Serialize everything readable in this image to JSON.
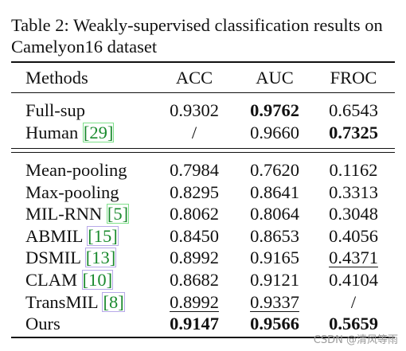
{
  "caption": "Table 2: Weakly-supervised classification results on Camelyon16 dataset",
  "header": {
    "method": "Methods",
    "acc": "ACC",
    "auc": "AUC",
    "froc": "FROC"
  },
  "group1": [
    {
      "name": "Full-sup",
      "ref": "",
      "acc": "0.9302",
      "auc": "0.9762",
      "froc": "0.6543",
      "auc_bold": true
    },
    {
      "name": "Human",
      "ref": "29",
      "acc": "/",
      "auc": "0.9660",
      "froc": "0.7325",
      "froc_bold": true
    }
  ],
  "group2": [
    {
      "name": "Mean-pooling",
      "ref": "",
      "acc": "0.7984",
      "auc": "0.7620",
      "froc": "0.1162"
    },
    {
      "name": "Max-pooling",
      "ref": "",
      "acc": "0.8295",
      "auc": "0.8641",
      "froc": "0.3313"
    },
    {
      "name": "MIL-RNN",
      "ref": "5",
      "acc": "0.8062",
      "auc": "0.8064",
      "froc": "0.3048"
    },
    {
      "name": "ABMIL",
      "ref": "15",
      "acc": "0.8450",
      "auc": "0.8653",
      "froc": "0.4056"
    },
    {
      "name": "DSMIL",
      "ref": "13",
      "acc": "0.8992",
      "auc": "0.9165",
      "froc": "0.4371",
      "froc_under": true
    },
    {
      "name": "CLAM",
      "ref": "10",
      "acc": "0.8682",
      "auc": "0.9121",
      "froc": "0.4104"
    },
    {
      "name": "TransMIL",
      "ref": "8",
      "acc": "0.8992",
      "auc": "0.9337",
      "froc": "/",
      "acc_under": true,
      "auc_under": true
    },
    {
      "name": "Ours",
      "ref": "",
      "acc": "0.9147",
      "auc": "0.9566",
      "froc": "0.5659",
      "acc_bold": true,
      "auc_bold": true,
      "froc_bold": true
    }
  ],
  "watermark": "CSDN @清风等雨"
}
